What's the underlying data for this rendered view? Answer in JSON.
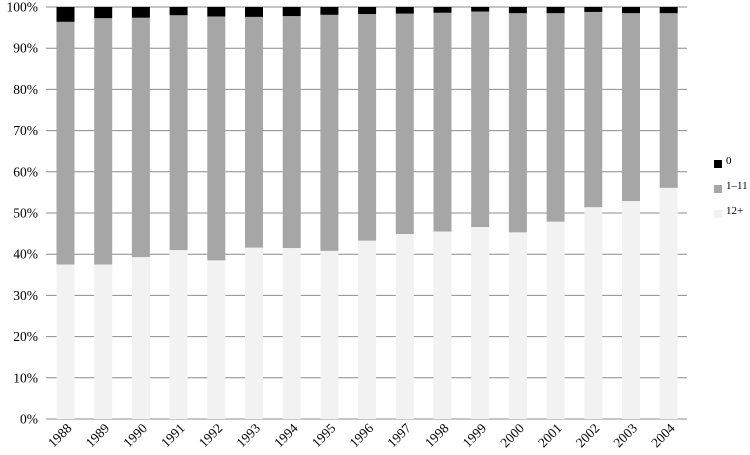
{
  "chart_data": {
    "type": "bar",
    "stacked": true,
    "categories": [
      "1988",
      "1989",
      "1990",
      "1991",
      "1992",
      "1993",
      "1994",
      "1995",
      "1996",
      "1997",
      "1998",
      "1999",
      "2000",
      "2001",
      "2002",
      "2003",
      "2004"
    ],
    "series": [
      {
        "name": "12+",
        "color": "#f2f2f2",
        "values": [
          37.5,
          37.5,
          39.3,
          41.0,
          38.5,
          41.6,
          41.5,
          40.8,
          43.3,
          44.9,
          45.5,
          46.6,
          45.3,
          47.9,
          51.4,
          52.9,
          56.1
        ]
      },
      {
        "name": "1–11",
        "color": "#a6a6a6",
        "values": [
          58.9,
          59.8,
          58.1,
          57.0,
          59.2,
          56.0,
          56.3,
          57.3,
          55.0,
          53.5,
          53.1,
          52.3,
          53.2,
          50.6,
          47.4,
          45.6,
          42.4
        ]
      },
      {
        "name": "0",
        "color": "#000000",
        "values": [
          3.6,
          2.7,
          2.6,
          2.0,
          2.3,
          2.4,
          2.2,
          1.9,
          1.7,
          1.6,
          1.4,
          1.1,
          1.5,
          1.5,
          1.2,
          1.5,
          1.5
        ]
      }
    ],
    "yticks": [
      "0%",
      "10%",
      "20%",
      "30%",
      "40%",
      "50%",
      "60%",
      "70%",
      "80%",
      "90%",
      "100%"
    ],
    "ylim": [
      0,
      100
    ],
    "grid": true,
    "legend_position": "right"
  }
}
